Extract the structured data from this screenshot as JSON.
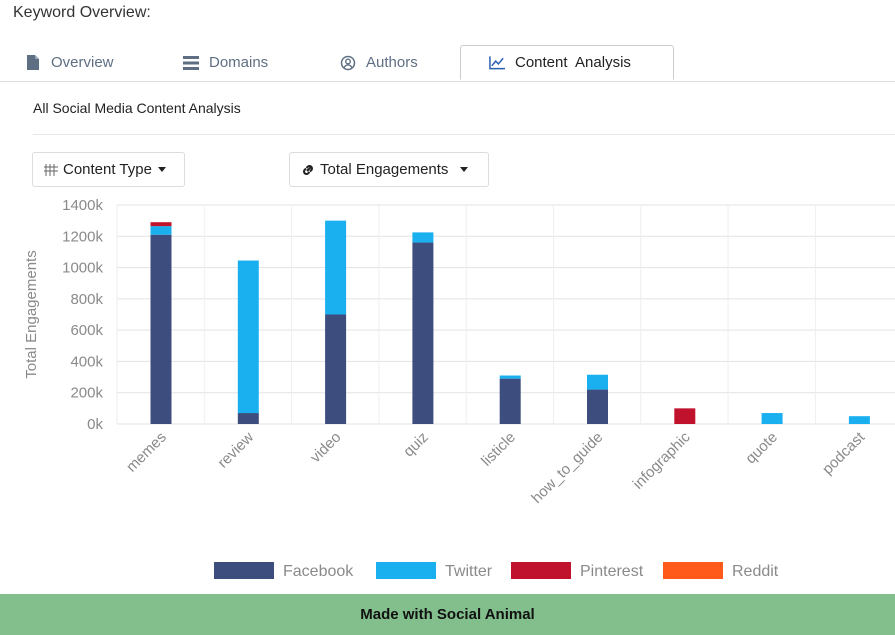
{
  "page": {
    "title": "Keyword Overview:",
    "section_title": "All Social Media Content Analysis",
    "footer": "Made with Social Animal"
  },
  "tabs": [
    {
      "label": "Overview",
      "icon": "document-icon",
      "active": false
    },
    {
      "label": "Domains",
      "icon": "list-icon",
      "active": false
    },
    {
      "label": "Authors",
      "icon": "user-circle-icon",
      "active": false
    },
    {
      "label": "Content  Analysis",
      "icon": "line-chart-icon",
      "active": true
    }
  ],
  "controls": {
    "content_type_label": "Content Type",
    "metric_label": "Total Engagements"
  },
  "colors": {
    "Facebook": "#3d4e7e",
    "Twitter": "#1ab0f0",
    "Pinterest": "#c0122c",
    "Reddit": "#ff5a1a"
  },
  "chart_data": {
    "type": "bar",
    "stacked": true,
    "categories": [
      "memes",
      "review",
      "video",
      "quiz",
      "listicle",
      "how_to_guide",
      "infographic",
      "quote",
      "podcast"
    ],
    "series": [
      {
        "name": "Facebook",
        "values": [
          1210000,
          70000,
          700000,
          1160000,
          290000,
          220000,
          0,
          0,
          0
        ]
      },
      {
        "name": "Twitter",
        "values": [
          55000,
          975000,
          600000,
          65000,
          20000,
          95000,
          0,
          70000,
          50000
        ]
      },
      {
        "name": "Pinterest",
        "values": [
          25000,
          0,
          0,
          0,
          0,
          0,
          100000,
          0,
          0
        ]
      },
      {
        "name": "Reddit",
        "values": [
          0,
          0,
          0,
          0,
          0,
          0,
          0,
          0,
          0
        ]
      }
    ],
    "ylabel": "Total Engagements",
    "ylim": [
      0,
      1400000
    ],
    "yticks": [
      "0k",
      "200k",
      "400k",
      "600k",
      "800k",
      "1000k",
      "1200k",
      "1400k"
    ],
    "grid": true,
    "legend_position": "bottom"
  }
}
